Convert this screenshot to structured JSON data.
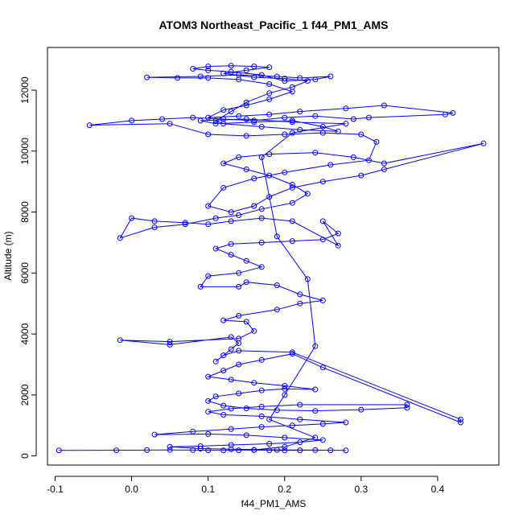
{
  "chart_data": {
    "type": "line",
    "title": "ATOM3 Northeast_Pacific_1 f44_PM1_AMS",
    "xlabel": "f44_PM1_AMS",
    "ylabel": "Altitude (m)",
    "xlim": [
      -0.11,
      0.48
    ],
    "ylim": [
      -300,
      13400
    ],
    "xticks": [
      -0.1,
      0.0,
      0.1,
      0.2,
      0.3,
      0.4
    ],
    "xtick_labels": [
      "-0.1",
      "0.0",
      "0.1",
      "0.2",
      "0.3",
      "0.4"
    ],
    "yticks": [
      0,
      2000,
      4000,
      6000,
      8000,
      10000,
      12000
    ],
    "ytick_labels": [
      "0",
      "2000",
      "4000",
      "6000",
      "8000",
      "10000",
      "12000"
    ],
    "grid": false,
    "legend": "none",
    "series_color": "#0000ff",
    "series": [
      {
        "markers": "open-circle",
        "line": true,
        "points": [
          [
            -0.095,
            180
          ],
          [
            -0.02,
            185
          ],
          [
            0.02,
            190
          ],
          [
            0.05,
            195
          ],
          [
            0.08,
            190
          ],
          [
            0.1,
            185
          ],
          [
            0.12,
            180
          ],
          [
            0.14,
            185
          ],
          [
            0.16,
            190
          ],
          [
            0.18,
            185
          ],
          [
            0.2,
            180
          ],
          [
            0.22,
            185
          ],
          [
            0.24,
            190
          ],
          [
            0.26,
            185
          ],
          [
            0.28,
            180
          ],
          [
            0.19,
            200
          ],
          [
            0.13,
            220
          ],
          [
            0.09,
            240
          ],
          [
            0.05,
            300
          ],
          [
            0.09,
            320
          ],
          [
            0.13,
            360
          ],
          [
            0.18,
            400
          ],
          [
            0.22,
            450
          ],
          [
            0.25,
            520
          ],
          [
            0.2,
            600
          ],
          [
            0.15,
            680
          ],
          [
            0.1,
            720
          ],
          [
            0.03,
            700
          ],
          [
            0.08,
            800
          ],
          [
            0.13,
            880
          ],
          [
            0.17,
            950
          ],
          [
            0.21,
            1000
          ],
          [
            0.25,
            1050
          ],
          [
            0.28,
            1100
          ],
          [
            0.22,
            1200
          ],
          [
            0.17,
            1300
          ],
          [
            0.12,
            1350
          ],
          [
            0.1,
            1450
          ],
          [
            0.13,
            1550
          ],
          [
            0.17,
            1620
          ],
          [
            0.22,
            1680
          ],
          [
            0.36,
            1680
          ],
          [
            0.36,
            1580
          ],
          [
            0.3,
            1520
          ],
          [
            0.24,
            1480
          ],
          [
            0.19,
            1500
          ],
          [
            0.15,
            1560
          ],
          [
            0.12,
            1650
          ],
          [
            0.1,
            1800
          ],
          [
            0.11,
            1950
          ],
          [
            0.14,
            2050
          ],
          [
            0.17,
            2150
          ],
          [
            0.2,
            2200
          ],
          [
            0.24,
            2180
          ],
          [
            0.2,
            2300
          ],
          [
            0.16,
            2400
          ],
          [
            0.13,
            2500
          ],
          [
            0.1,
            2600
          ],
          [
            0.12,
            2800
          ],
          [
            0.14,
            3000
          ],
          [
            0.17,
            3150
          ],
          [
            0.21,
            3350
          ],
          [
            0.25,
            2900
          ],
          [
            0.43,
            1100
          ],
          [
            0.43,
            1200
          ],
          [
            0.21,
            3400
          ],
          [
            0.14,
            3450
          ],
          [
            0.12,
            3300
          ],
          [
            0.11,
            3100
          ],
          [
            0.13,
            3500
          ],
          [
            0.14,
            3700
          ],
          [
            0.13,
            3900
          ],
          [
            0.05,
            3650
          ],
          [
            -0.015,
            3800
          ],
          [
            0.05,
            3750
          ],
          [
            0.14,
            3850
          ],
          [
            0.16,
            4100
          ],
          [
            0.15,
            4400
          ],
          [
            0.12,
            4450
          ],
          [
            0.14,
            4600
          ],
          [
            0.19,
            4800
          ],
          [
            0.22,
            5000
          ],
          [
            0.25,
            5100
          ],
          [
            0.22,
            5300
          ],
          [
            0.19,
            5600
          ],
          [
            0.15,
            5700
          ],
          [
            0.14,
            5550
          ],
          [
            0.09,
            5550
          ],
          [
            0.1,
            5900
          ],
          [
            0.14,
            6000
          ],
          [
            0.17,
            6200
          ],
          [
            0.15,
            6400
          ],
          [
            0.13,
            6600
          ],
          [
            0.11,
            6800
          ],
          [
            0.13,
            6950
          ],
          [
            0.17,
            7000
          ],
          [
            0.21,
            7050
          ],
          [
            0.25,
            7100
          ],
          [
            0.27,
            7300
          ],
          [
            0.25,
            7700
          ],
          [
            0.27,
            6900
          ],
          [
            0.21,
            7700
          ],
          [
            0.17,
            7800
          ],
          [
            0.13,
            7700
          ],
          [
            0.1,
            7600
          ],
          [
            0.07,
            7650
          ],
          [
            0.03,
            7700
          ],
          [
            0.0,
            7800
          ],
          [
            -0.015,
            7150
          ],
          [
            0.03,
            7500
          ],
          [
            0.07,
            7600
          ],
          [
            0.11,
            7800
          ],
          [
            0.14,
            7900
          ],
          [
            0.17,
            8100
          ],
          [
            0.21,
            8300
          ],
          [
            0.23,
            8600
          ],
          [
            0.21,
            8900
          ],
          [
            0.18,
            9200
          ],
          [
            0.15,
            9400
          ],
          [
            0.12,
            9600
          ],
          [
            0.14,
            9800
          ],
          [
            0.18,
            9900
          ],
          [
            0.24,
            9950
          ],
          [
            0.29,
            9800
          ],
          [
            0.33,
            9600
          ],
          [
            0.46,
            10250
          ],
          [
            0.33,
            9400
          ],
          [
            0.3,
            9200
          ],
          [
            0.25,
            9000
          ],
          [
            0.21,
            8800
          ],
          [
            0.18,
            8500
          ],
          [
            0.16,
            8200
          ],
          [
            0.13,
            8000
          ],
          [
            0.1,
            8200
          ],
          [
            0.12,
            8800
          ],
          [
            0.16,
            9100
          ],
          [
            0.2,
            9300
          ],
          [
            0.26,
            9550
          ],
          [
            0.31,
            9700
          ],
          [
            0.32,
            10300
          ],
          [
            0.3,
            10550
          ],
          [
            0.25,
            10600
          ],
          [
            0.2,
            10550
          ],
          [
            0.15,
            10500
          ],
          [
            0.1,
            10550
          ],
          [
            0.05,
            10900
          ],
          [
            -0.055,
            10850
          ],
          [
            0.0,
            11000
          ],
          [
            0.04,
            11050
          ],
          [
            0.08,
            11100
          ],
          [
            0.12,
            11050
          ],
          [
            0.16,
            11000
          ],
          [
            0.2,
            11100
          ],
          [
            0.24,
            11150
          ],
          [
            0.29,
            11050
          ],
          [
            0.31,
            11100
          ],
          [
            0.41,
            11200
          ],
          [
            0.42,
            11250
          ],
          [
            0.33,
            11500
          ],
          [
            0.28,
            11400
          ],
          [
            0.22,
            11300
          ],
          [
            0.18,
            11200
          ],
          [
            0.14,
            11150
          ],
          [
            0.1,
            11100
          ],
          [
            0.12,
            11350
          ],
          [
            0.15,
            11500
          ],
          [
            0.18,
            11700
          ],
          [
            0.21,
            11950
          ],
          [
            0.18,
            12200
          ],
          [
            0.14,
            12350
          ],
          [
            0.1,
            12400
          ],
          [
            0.06,
            12400
          ],
          [
            0.02,
            12420
          ],
          [
            0.09,
            12450
          ],
          [
            0.14,
            12500
          ],
          [
            0.19,
            12450
          ],
          [
            0.22,
            12400
          ],
          [
            0.26,
            12450
          ],
          [
            0.24,
            12350
          ],
          [
            0.2,
            12300
          ],
          [
            0.17,
            12500
          ],
          [
            0.13,
            12600
          ],
          [
            0.1,
            12650
          ],
          [
            0.08,
            12700
          ],
          [
            0.1,
            12780
          ],
          [
            0.13,
            12800
          ],
          [
            0.16,
            12780
          ],
          [
            0.18,
            12750
          ],
          [
            0.15,
            12650
          ],
          [
            0.12,
            12550
          ],
          [
            0.16,
            12420
          ],
          [
            0.2,
            12380
          ],
          [
            0.23,
            12300
          ],
          [
            0.21,
            12100
          ],
          [
            0.18,
            11900
          ],
          [
            0.15,
            11600
          ],
          [
            0.13,
            11300
          ],
          [
            0.11,
            11000
          ],
          [
            0.12,
            10900
          ],
          [
            0.17,
            10800
          ],
          [
            0.22,
            10700
          ],
          [
            0.27,
            10650
          ],
          [
            0.25,
            10800
          ],
          [
            0.21,
            11000
          ],
          [
            0.16,
            10950
          ],
          [
            0.11,
            10900
          ],
          [
            0.09,
            11000
          ],
          [
            0.15,
            11050
          ],
          [
            0.21,
            10950
          ],
          [
            0.28,
            10900
          ],
          [
            0.21,
            10600
          ],
          [
            0.17,
            9800
          ],
          [
            0.19,
            7200
          ],
          [
            0.23,
            5800
          ],
          [
            0.24,
            3600
          ],
          [
            0.2,
            2000
          ],
          [
            0.18,
            1200
          ],
          [
            0.24,
            600
          ],
          [
            0.2,
            300
          ],
          [
            0.16,
            200
          ]
        ]
      }
    ]
  }
}
